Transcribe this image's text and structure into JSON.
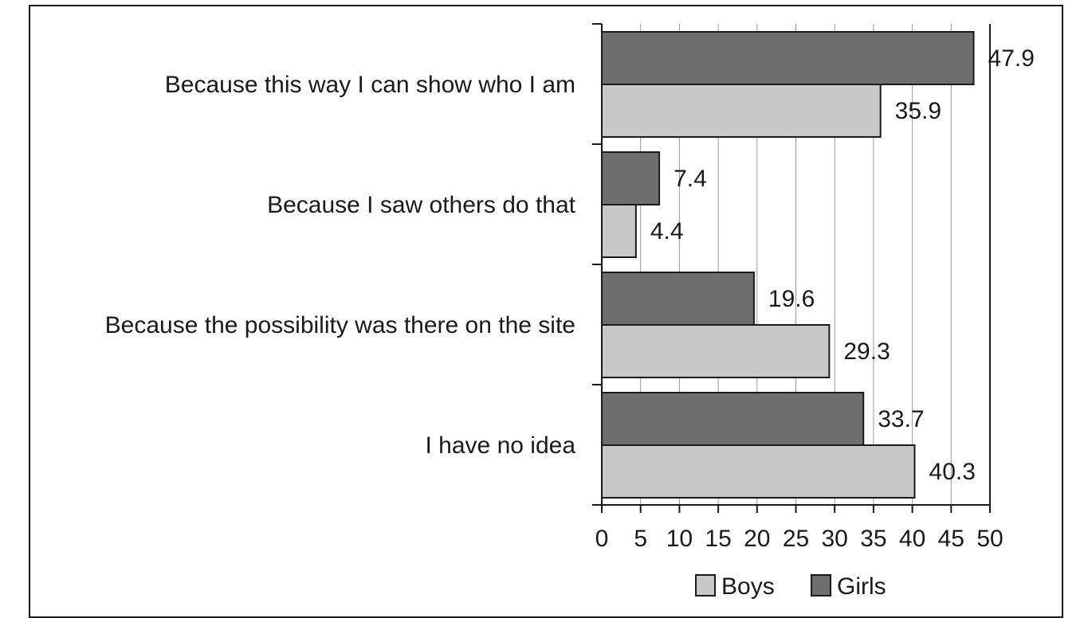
{
  "chart_data": {
    "type": "bar",
    "orientation": "horizontal",
    "title": "",
    "xlabel": "",
    "ylabel": "",
    "xlim": [
      0,
      50
    ],
    "xticks": [
      0,
      5,
      10,
      15,
      20,
      25,
      30,
      35,
      40,
      45,
      50
    ],
    "grid": "vertical",
    "legend_position": "bottom",
    "categories": [
      "Because this way I can show who I am",
      "Because I saw others do that",
      "Because the possibility was there on the site",
      "I have no idea"
    ],
    "series": [
      {
        "name": "Girls",
        "color": "#6e6e6e",
        "values": [
          47.9,
          7.4,
          19.6,
          33.7
        ]
      },
      {
        "name": "Boys",
        "color": "#c8c8c8",
        "values": [
          35.9,
          4.4,
          29.3,
          40.3
        ]
      }
    ],
    "legend": [
      "Boys",
      "Girls"
    ]
  }
}
